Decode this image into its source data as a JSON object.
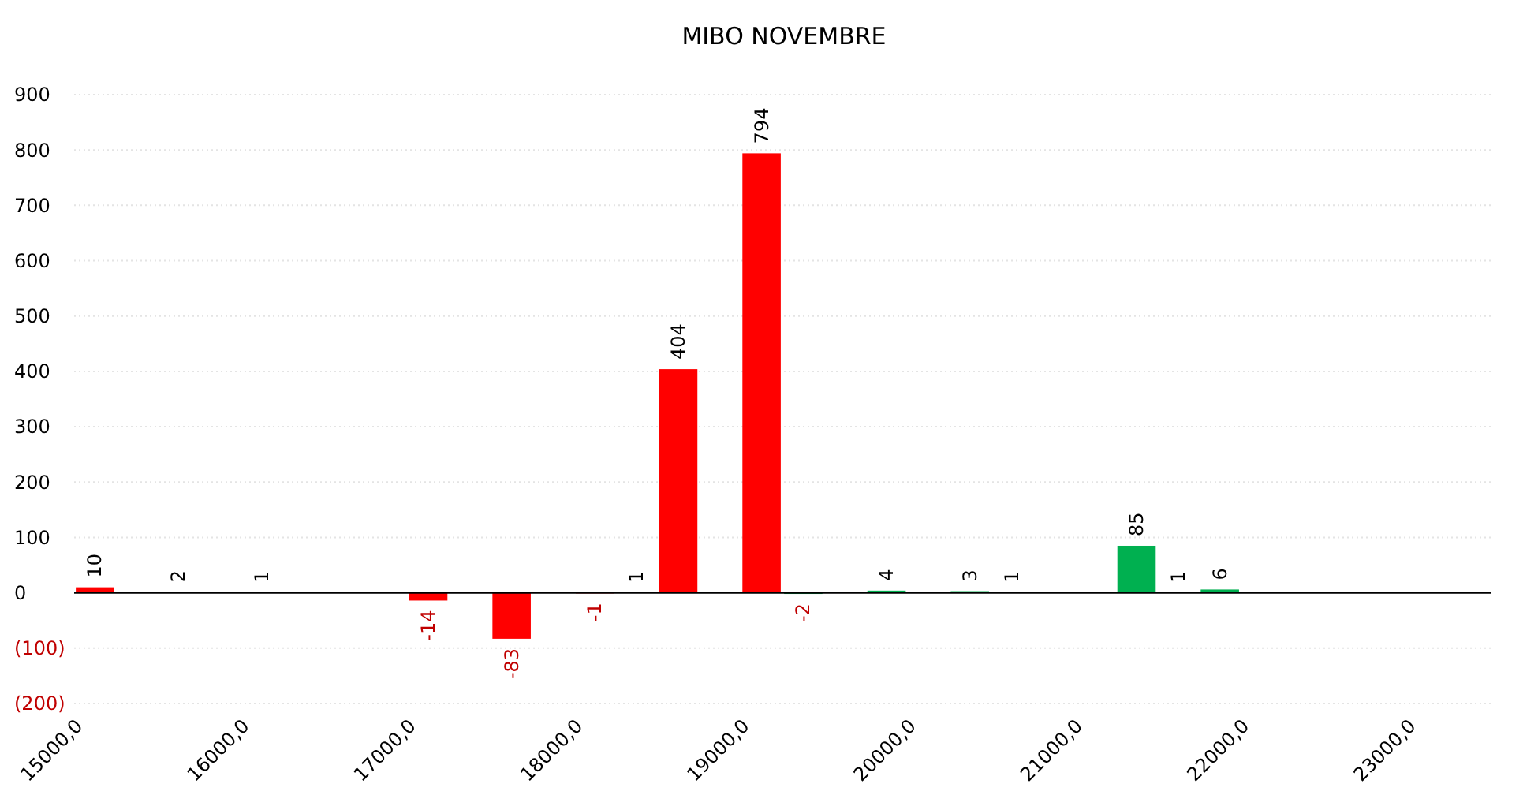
{
  "chart_data": {
    "type": "bar",
    "title": "MIBO NOVEMBRE",
    "categories": [
      "15000,0",
      null,
      null,
      null,
      "16000,0",
      null,
      null,
      null,
      "17000,0",
      null,
      null,
      null,
      "18000,0",
      null,
      null,
      null,
      "19000,0",
      null,
      null,
      null,
      "20000,0",
      null,
      null,
      null,
      "21000,0",
      null,
      null,
      null,
      "22000,0",
      null,
      null,
      null,
      "23000,0",
      null
    ],
    "values": [
      10,
      null,
      2,
      null,
      1,
      null,
      null,
      null,
      -14,
      null,
      -83,
      null,
      -1,
      1,
      404,
      null,
      794,
      -2,
      null,
      4,
      null,
      3,
      1,
      null,
      null,
      85,
      1,
      6,
      null,
      null,
      null,
      null,
      null,
      null
    ],
    "colors": [
      "#ff0000",
      null,
      "#ff0000",
      null,
      "#ff0000",
      null,
      null,
      null,
      "#ff0000",
      null,
      "#ff0000",
      null,
      "#ff0000",
      "#ff0000",
      "#ff0000",
      null,
      "#ff0000",
      "#00b050",
      null,
      "#00b050",
      null,
      "#00b050",
      "#00b050",
      null,
      null,
      "#00b050",
      "#00b050",
      "#00b050",
      null,
      null,
      null,
      null,
      null,
      null
    ],
    "ylim": [
      -200,
      900
    ],
    "yticks": [
      {
        "value": -200,
        "label": "(200)"
      },
      {
        "value": -100,
        "label": "(100)"
      },
      0,
      100,
      200,
      300,
      400,
      500,
      600,
      700,
      800,
      900
    ],
    "grid": "y",
    "data_labels": true
  }
}
